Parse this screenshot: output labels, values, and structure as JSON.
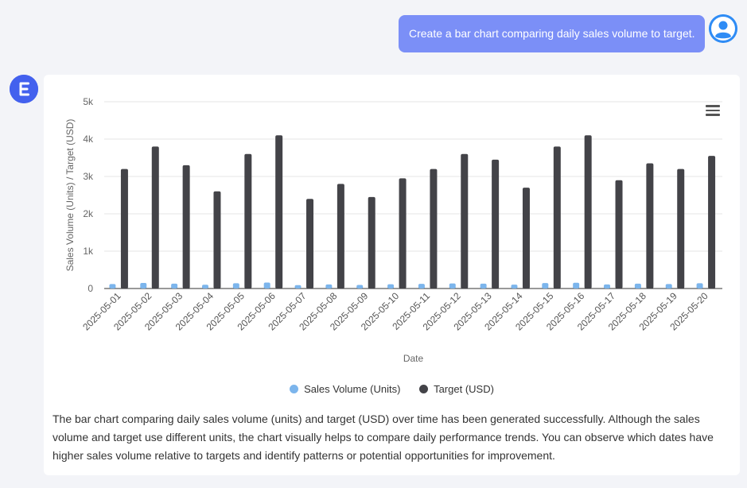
{
  "user_message": "Create a bar chart comparing daily sales volume to target.",
  "icons": {
    "user_avatar": "user-avatar-icon",
    "bot_avatar": "assistant-logo-icon",
    "chart_menu": "hamburger-menu-icon"
  },
  "colors": {
    "user_bubble": "#7b8ff7",
    "sales_series": "#7cb5ec",
    "target_series": "#434348",
    "bot_logo": "#4361ee"
  },
  "chart_data": {
    "type": "bar",
    "title": "",
    "xlabel": "Date",
    "ylabel": "Sales Volume (Units) / Target (USD)",
    "ylim": [
      0,
      5000
    ],
    "yticks": [
      0,
      1000,
      2000,
      3000,
      4000,
      5000
    ],
    "ytick_labels": [
      "0",
      "1k",
      "2k",
      "3k",
      "4k",
      "5k"
    ],
    "grid": true,
    "legend_position": "bottom",
    "categories": [
      "2025-05-01",
      "2025-05-02",
      "2025-05-03",
      "2025-05-04",
      "2025-05-05",
      "2025-05-06",
      "2025-05-07",
      "2025-05-08",
      "2025-05-09",
      "2025-05-10",
      "2025-05-11",
      "2025-05-12",
      "2025-05-13",
      "2025-05-14",
      "2025-05-15",
      "2025-05-16",
      "2025-05-17",
      "2025-05-18",
      "2025-05-19",
      "2025-05-20"
    ],
    "series": [
      {
        "name": "Sales Volume (Units)",
        "values": [
          120,
          150,
          130,
          100,
          140,
          160,
          90,
          110,
          95,
          115,
          125,
          135,
          130,
          105,
          145,
          155,
          110,
          130,
          120,
          140
        ]
      },
      {
        "name": "Target (USD)",
        "values": [
          3200,
          3800,
          3300,
          2600,
          3600,
          4100,
          2400,
          2800,
          2450,
          2950,
          3200,
          3600,
          3450,
          2700,
          3800,
          4100,
          2900,
          3350,
          3200,
          3550
        ]
      }
    ]
  },
  "description": "The bar chart comparing daily sales volume (units) and target (USD) over time has been generated successfully. Although the sales volume and target use different units, the chart visually helps to compare daily performance trends. You can observe which dates have higher sales volume relative to targets and identify patterns or potential opportunities for improvement."
}
